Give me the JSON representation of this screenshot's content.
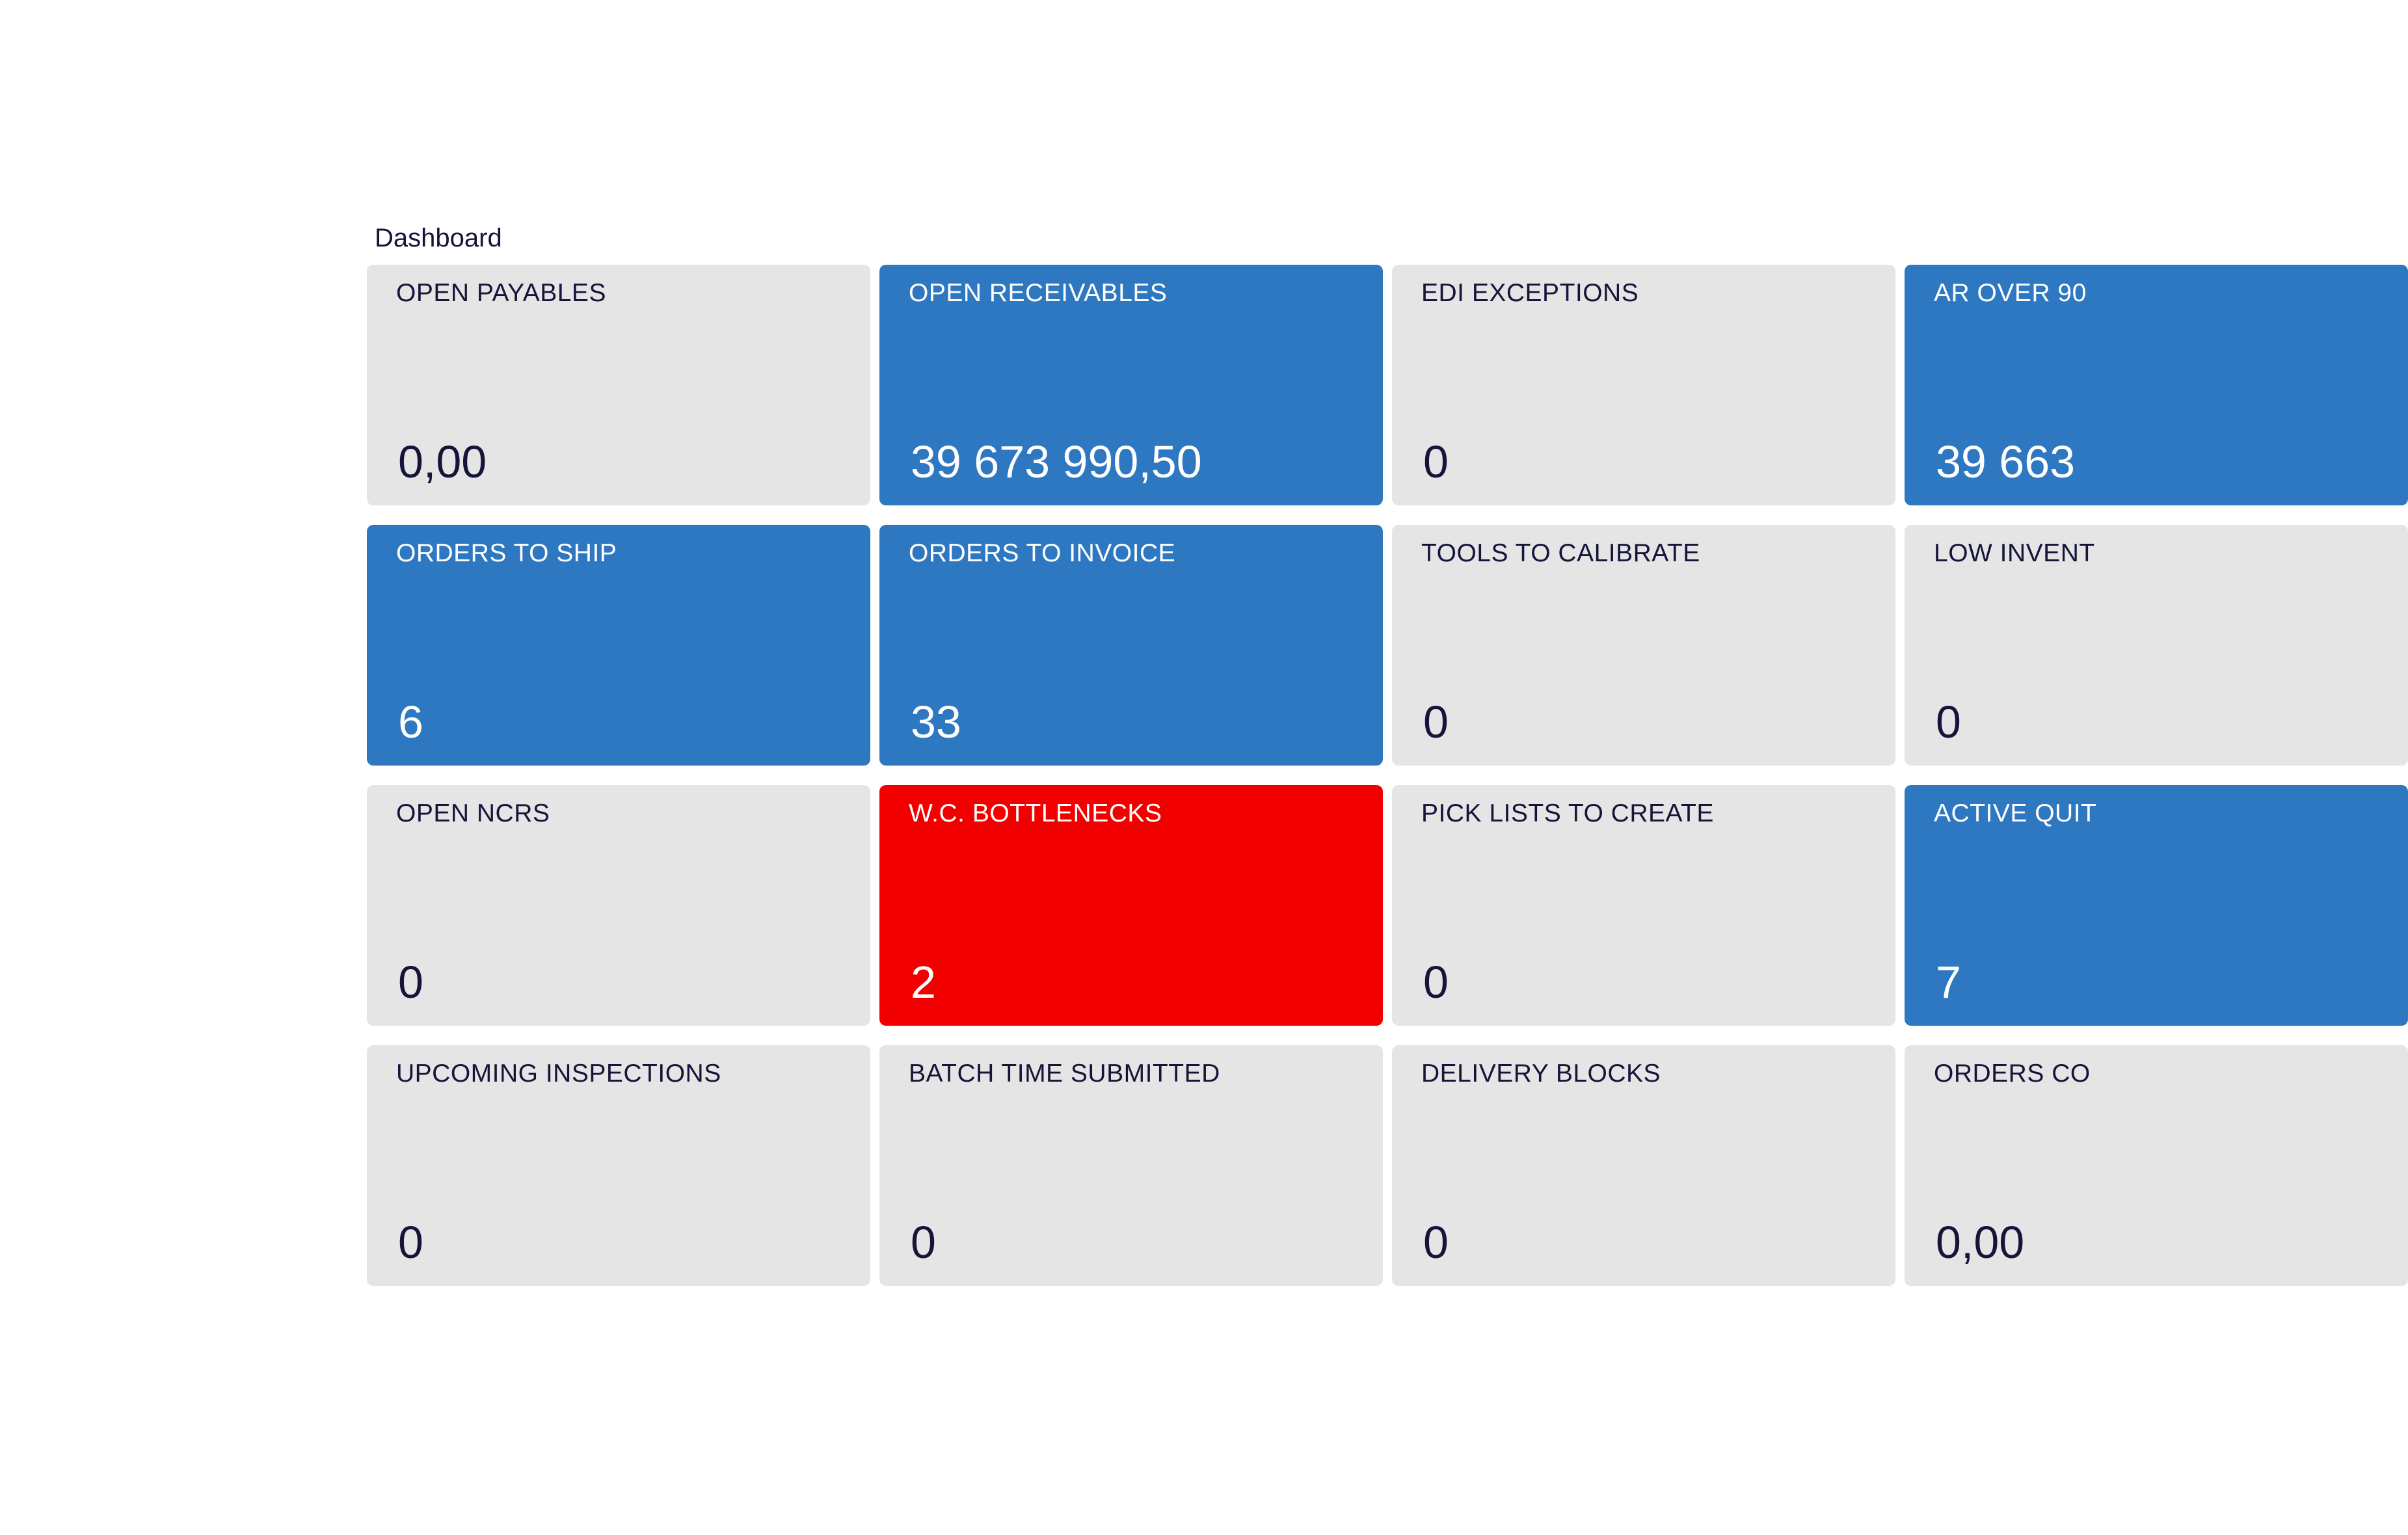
{
  "page": {
    "title": "Dashboard"
  },
  "colors": {
    "neutral": "#e5e5e6",
    "accent": "#2e78c1",
    "alert": "#f20000",
    "text_dark": "#15153a",
    "text_light": "#ffffff"
  },
  "tiles": [
    {
      "id": "open-payables",
      "label": "OPEN PAYABLES",
      "value": "0,00",
      "status": "neutral"
    },
    {
      "id": "open-receivables",
      "label": "OPEN RECEIVABLES",
      "value": "39 673 990,50",
      "status": "accent"
    },
    {
      "id": "edi-exceptions",
      "label": "EDI EXCEPTIONS",
      "value": "0",
      "status": "neutral"
    },
    {
      "id": "ar-over-90",
      "label": "AR OVER 90",
      "value": "39 663",
      "status": "accent"
    },
    {
      "id": "orders-to-ship",
      "label": "ORDERS TO SHIP",
      "value": "6",
      "status": "accent"
    },
    {
      "id": "orders-to-invoice",
      "label": "ORDERS TO INVOICE",
      "value": "33",
      "status": "accent"
    },
    {
      "id": "tools-to-calibrate",
      "label": "TOOLS TO CALIBRATE",
      "value": "0",
      "status": "neutral"
    },
    {
      "id": "low-inventory",
      "label": "LOW INVENT",
      "value": "0",
      "status": "neutral"
    },
    {
      "id": "open-ncrs",
      "label": "OPEN NCRS",
      "value": "0",
      "status": "neutral"
    },
    {
      "id": "wc-bottlenecks",
      "label": "W.C. BOTTLENECKS",
      "value": "2",
      "status": "alert"
    },
    {
      "id": "pick-lists-to-create",
      "label": "PICK LISTS TO CREATE",
      "value": "0",
      "status": "neutral"
    },
    {
      "id": "active-quit",
      "label": "ACTIVE QUIT",
      "value": "7",
      "status": "accent"
    },
    {
      "id": "upcoming-inspections",
      "label": "UPCOMING INSPECTIONS",
      "value": "0",
      "status": "neutral"
    },
    {
      "id": "batch-time-submitted",
      "label": "BATCH TIME SUBMITTED",
      "value": "0",
      "status": "neutral"
    },
    {
      "id": "delivery-blocks",
      "label": "DELIVERY BLOCKS",
      "value": "0",
      "status": "neutral"
    },
    {
      "id": "orders-co",
      "label": "ORDERS CO",
      "value": "0,00",
      "status": "neutral"
    }
  ]
}
